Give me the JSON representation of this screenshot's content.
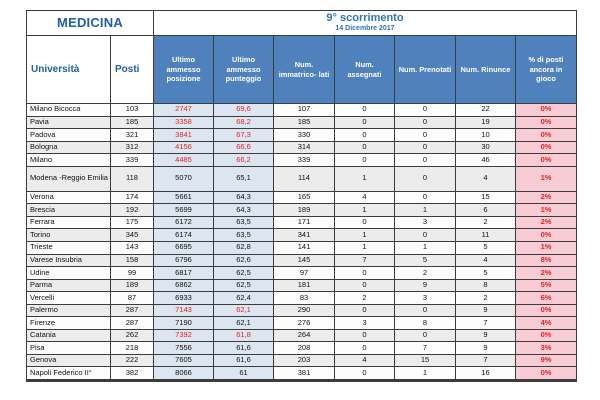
{
  "table": {
    "title_left": "MEDICINA",
    "title_main": "9° scorrimento",
    "title_sub": "14 Dicembre 2017",
    "columns": [
      "Università",
      "Posti",
      "Ultimo ammesso posizione",
      "Ultimo ammesso punteggio",
      "Num. immatrico- lati",
      "Num. assegnati",
      "Num. Prenotati",
      "Num. Rinunce",
      "% di posti ancora in gioco"
    ],
    "colors": {
      "header_blue": "#4f81bd",
      "light_blue_column": "#dce6f1",
      "pink_column": "#f8ccd4",
      "red_text": "#e32421",
      "title_blue": "#1f5fa8",
      "subtitle_blue": "#2e74b6"
    },
    "rows": [
      {
        "university": "Milano Bicocca",
        "posti": "103",
        "posizione": "2747",
        "punteggio": "69,6",
        "immatricolati": "107",
        "assegnati": "0",
        "prenotati": "0",
        "rinunce": "22",
        "perc": "0%",
        "highlight": true,
        "tall": false
      },
      {
        "university": "Pavia",
        "posti": "185",
        "posizione": "3358",
        "punteggio": "68,2",
        "immatricolati": "185",
        "assegnati": "0",
        "prenotati": "0",
        "rinunce": "19",
        "perc": "0%",
        "highlight": true,
        "tall": false
      },
      {
        "university": "Padova",
        "posti": "321",
        "posizione": "3841",
        "punteggio": "67,3",
        "immatricolati": "330",
        "assegnati": "0",
        "prenotati": "0",
        "rinunce": "10",
        "perc": "0%",
        "highlight": true,
        "tall": false
      },
      {
        "university": "Bologna",
        "posti": "312",
        "posizione": "4156",
        "punteggio": "66,6",
        "immatricolati": "314",
        "assegnati": "0",
        "prenotati": "0",
        "rinunce": "30",
        "perc": "0%",
        "highlight": true,
        "tall": false
      },
      {
        "university": "Milano",
        "posti": "339",
        "posizione": "4485",
        "punteggio": "66,2",
        "immatricolati": "339",
        "assegnati": "0",
        "prenotati": "0",
        "rinunce": "46",
        "perc": "0%",
        "highlight": true,
        "tall": false
      },
      {
        "university": "Modena -Reggio Emilia",
        "posti": "118",
        "posizione": "5070",
        "punteggio": "65,1",
        "immatricolati": "114",
        "assegnati": "1",
        "prenotati": "0",
        "rinunce": "4",
        "perc": "1%",
        "highlight": false,
        "tall": true
      },
      {
        "university": "Verona",
        "posti": "174",
        "posizione": "5661",
        "punteggio": "64,3",
        "immatricolati": "165",
        "assegnati": "4",
        "prenotati": "0",
        "rinunce": "15",
        "perc": "2%",
        "highlight": false,
        "tall": false
      },
      {
        "university": "Brescia",
        "posti": "192",
        "posizione": "5699",
        "punteggio": "64,3",
        "immatricolati": "189",
        "assegnati": "1",
        "prenotati": "1",
        "rinunce": "6",
        "perc": "1%",
        "highlight": false,
        "tall": false
      },
      {
        "university": "Ferrara",
        "posti": "175",
        "posizione": "6172",
        "punteggio": "63,5",
        "immatricolati": "171",
        "assegnati": "0",
        "prenotati": "3",
        "rinunce": "2",
        "perc": "2%",
        "highlight": false,
        "tall": false
      },
      {
        "university": "Torino",
        "posti": "345",
        "posizione": "6174",
        "punteggio": "63,5",
        "immatricolati": "341",
        "assegnati": "1",
        "prenotati": "0",
        "rinunce": "11",
        "perc": "0%",
        "highlight": false,
        "tall": false
      },
      {
        "university": "Trieste",
        "posti": "143",
        "posizione": "6695",
        "punteggio": "62,8",
        "immatricolati": "141",
        "assegnati": "1",
        "prenotati": "1",
        "rinunce": "5",
        "perc": "1%",
        "highlight": false,
        "tall": false
      },
      {
        "university": "Varese Insubria",
        "posti": "158",
        "posizione": "6796",
        "punteggio": "62,6",
        "immatricolati": "145",
        "assegnati": "7",
        "prenotati": "5",
        "rinunce": "4",
        "perc": "8%",
        "highlight": false,
        "tall": false
      },
      {
        "university": "Udine",
        "posti": "99",
        "posizione": "6817",
        "punteggio": "62,5",
        "immatricolati": "97",
        "assegnati": "0",
        "prenotati": "2",
        "rinunce": "5",
        "perc": "2%",
        "highlight": false,
        "tall": false
      },
      {
        "university": "Parma",
        "posti": "189",
        "posizione": "6862",
        "punteggio": "62,5",
        "immatricolati": "181",
        "assegnati": "0",
        "prenotati": "9",
        "rinunce": "8",
        "perc": "5%",
        "highlight": false,
        "tall": false
      },
      {
        "university": "Vercelli",
        "posti": "87",
        "posizione": "6933",
        "punteggio": "62,4",
        "immatricolati": "83",
        "assegnati": "2",
        "prenotati": "3",
        "rinunce": "2",
        "perc": "6%",
        "highlight": false,
        "tall": false
      },
      {
        "university": "Palermo",
        "posti": "287",
        "posizione": "7143",
        "punteggio": "62,1",
        "immatricolati": "290",
        "assegnati": "0",
        "prenotati": "0",
        "rinunce": "9",
        "perc": "0%",
        "highlight": true,
        "tall": false
      },
      {
        "university": "Firenze",
        "posti": "287",
        "posizione": "7190",
        "punteggio": "62,1",
        "immatricolati": "276",
        "assegnati": "3",
        "prenotati": "8",
        "rinunce": "7",
        "perc": "4%",
        "highlight": false,
        "tall": false
      },
      {
        "university": "Catania",
        "posti": "262",
        "posizione": "7392",
        "punteggio": "61,8",
        "immatricolati": "264",
        "assegnati": "0",
        "prenotati": "0",
        "rinunce": "9",
        "perc": "0%",
        "highlight": true,
        "tall": false
      },
      {
        "university": "Pisa",
        "posti": "218",
        "posizione": "7556",
        "punteggio": "61,6",
        "immatricolati": "208",
        "assegnati": "0",
        "prenotati": "7",
        "rinunce": "9",
        "perc": "3%",
        "highlight": false,
        "tall": false
      },
      {
        "university": "Genova",
        "posti": "222",
        "posizione": "7605",
        "punteggio": "61,6",
        "immatricolati": "203",
        "assegnati": "4",
        "prenotati": "15",
        "rinunce": "7",
        "perc": "9%",
        "highlight": false,
        "tall": false
      },
      {
        "university": "Napoli Federico II°",
        "posti": "382",
        "posizione": "8066",
        "punteggio": "61",
        "immatricolati": "381",
        "assegnati": "0",
        "prenotati": "1",
        "rinunce": "16",
        "perc": "0%",
        "highlight": false,
        "tall": false
      }
    ]
  }
}
